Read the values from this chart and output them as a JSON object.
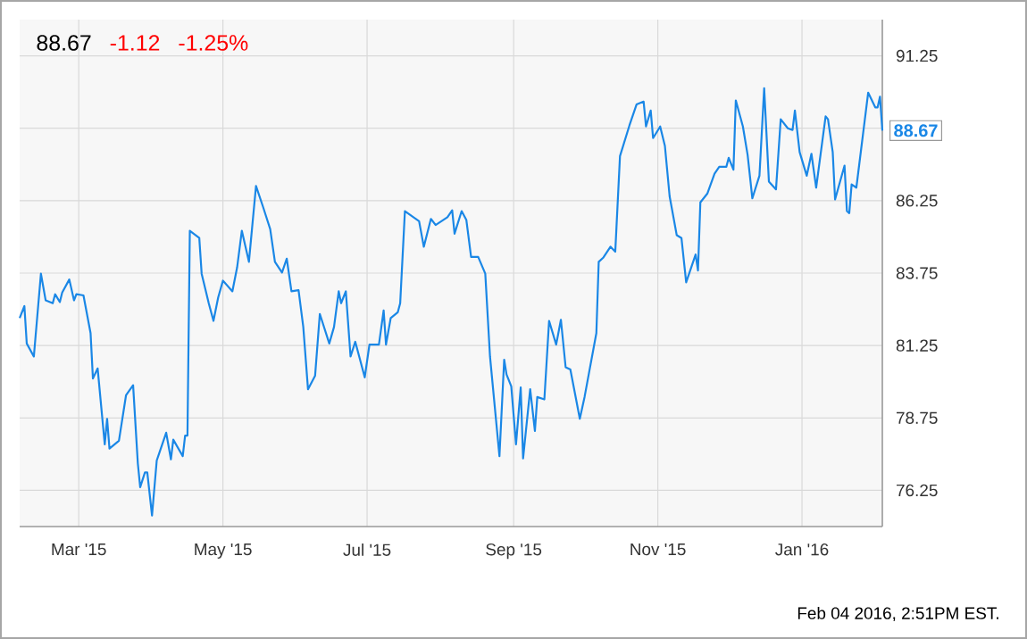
{
  "chart_data": {
    "type": "line",
    "x": [
      "2015-02-04",
      "2015-02-06",
      "2015-02-07",
      "2015-02-10",
      "2015-02-13",
      "2015-02-15",
      "2015-02-18",
      "2015-02-19",
      "2015-02-21",
      "2015-02-22",
      "2015-02-25",
      "2015-02-27",
      "2015-02-28",
      "2015-03-03",
      "2015-03-06",
      "2015-03-07",
      "2015-03-09",
      "2015-03-12",
      "2015-03-13",
      "2015-03-14",
      "2015-03-18",
      "2015-03-21",
      "2015-03-24",
      "2015-03-26",
      "2015-03-27",
      "2015-03-29",
      "2015-03-30",
      "2015-04-01",
      "2015-04-03",
      "2015-04-07",
      "2015-04-09",
      "2015-04-10",
      "2015-04-14",
      "2015-04-15",
      "2015-04-16",
      "2015-04-17",
      "2015-04-21",
      "2015-04-22",
      "2015-04-25",
      "2015-04-27",
      "2015-04-29",
      "2015-05-01",
      "2015-05-05",
      "2015-05-07",
      "2015-05-09",
      "2015-05-12",
      "2015-05-15",
      "2015-05-18",
      "2015-05-21",
      "2015-05-23",
      "2015-05-26",
      "2015-05-28",
      "2015-05-30",
      "2015-06-02",
      "2015-06-04",
      "2015-06-06",
      "2015-06-09",
      "2015-06-11",
      "2015-06-15",
      "2015-06-17",
      "2015-06-19",
      "2015-06-20",
      "2015-06-22",
      "2015-06-24",
      "2015-06-26",
      "2015-06-30",
      "2015-07-02",
      "2015-07-06",
      "2015-07-08",
      "2015-07-09",
      "2015-07-11",
      "2015-07-14",
      "2015-07-15",
      "2015-07-17",
      "2015-07-23",
      "2015-07-25",
      "2015-07-28",
      "2015-07-30",
      "2015-08-04",
      "2015-08-06",
      "2015-08-07",
      "2015-08-10",
      "2015-08-12",
      "2015-08-14",
      "2015-08-17",
      "2015-08-20",
      "2015-08-22",
      "2015-08-26",
      "2015-08-28",
      "2015-08-29",
      "2015-08-31",
      "2015-09-02",
      "2015-09-04",
      "2015-09-05",
      "2015-09-08",
      "2015-09-10",
      "2015-09-11",
      "2015-09-14",
      "2015-09-16",
      "2015-09-19",
      "2015-09-21",
      "2015-09-23",
      "2015-09-25",
      "2015-09-29",
      "2015-10-01",
      "2015-10-06",
      "2015-10-07",
      "2015-10-09",
      "2015-10-12",
      "2015-10-14",
      "2015-10-16",
      "2015-10-20",
      "2015-10-23",
      "2015-10-26",
      "2015-10-27",
      "2015-10-29",
      "2015-10-30",
      "2015-11-02",
      "2015-11-04",
      "2015-11-06",
      "2015-11-09",
      "2015-11-11",
      "2015-11-13",
      "2015-11-17",
      "2015-11-18",
      "2015-11-19",
      "2015-11-22",
      "2015-11-25",
      "2015-11-27",
      "2015-11-30",
      "2015-12-01",
      "2015-12-03",
      "2015-12-04",
      "2015-12-07",
      "2015-12-09",
      "2015-12-11",
      "2015-12-14",
      "2015-12-16",
      "2015-12-18",
      "2015-12-21",
      "2015-12-23",
      "2015-12-26",
      "2015-12-28",
      "2015-12-29",
      "2015-12-31",
      "2016-01-03",
      "2016-01-05",
      "2016-01-07",
      "2016-01-11",
      "2016-01-12",
      "2016-01-14",
      "2016-01-15",
      "2016-01-19",
      "2016-01-20",
      "2016-01-21",
      "2016-01-22",
      "2016-01-24",
      "2016-01-29",
      "2016-02-01",
      "2016-02-02",
      "2016-02-03",
      "2016-02-04"
    ],
    "series": [
      {
        "color": "#1a87e6",
        "values": [
          82.2,
          82.61,
          81.32,
          80.87,
          83.73,
          82.81,
          82.71,
          83.02,
          82.75,
          83.08,
          83.53,
          82.81,
          83.02,
          82.98,
          81.68,
          80.11,
          80.46,
          77.84,
          78.72,
          77.69,
          77.96,
          79.53,
          79.88,
          77.18,
          76.36,
          76.87,
          76.87,
          75.38,
          77.28,
          78.24,
          77.32,
          78.0,
          77.43,
          78.14,
          78.14,
          85.21,
          84.96,
          83.73,
          82.71,
          82.1,
          82.91,
          83.49,
          83.12,
          83.94,
          85.21,
          84.14,
          86.76,
          86.03,
          85.27,
          84.14,
          83.77,
          84.25,
          83.12,
          83.16,
          81.89,
          79.74,
          80.21,
          82.34,
          81.32,
          81.89,
          83.12,
          82.71,
          83.12,
          80.87,
          81.38,
          80.15,
          81.28,
          81.28,
          82.46,
          81.28,
          82.2,
          82.4,
          82.71,
          85.89,
          85.54,
          84.66,
          85.62,
          85.41,
          85.68,
          85.92,
          85.11,
          85.89,
          85.58,
          84.31,
          84.31,
          83.73,
          80.87,
          77.43,
          80.76,
          80.25,
          79.84,
          77.84,
          79.8,
          77.35,
          79.74,
          78.3,
          79.47,
          79.39,
          82.1,
          81.28,
          82.14,
          80.5,
          80.42,
          78.72,
          79.47,
          81.68,
          84.14,
          84.29,
          84.66,
          84.49,
          87.79,
          88.85,
          89.57,
          89.67,
          88.81,
          89.36,
          88.41,
          88.81,
          88.14,
          86.4,
          85.06,
          84.96,
          83.43,
          84.39,
          83.84,
          86.19,
          86.5,
          87.18,
          87.42,
          87.42,
          87.73,
          87.32,
          89.71,
          88.81,
          87.83,
          86.33,
          87.11,
          90.13,
          86.91,
          86.64,
          89.06,
          88.75,
          88.69,
          89.36,
          87.93,
          87.11,
          87.87,
          86.7,
          89.16,
          89.06,
          87.93,
          86.29,
          87.46,
          85.89,
          85.82,
          86.81,
          86.7,
          89.98,
          89.47,
          89.47,
          89.84,
          88.67
        ]
      }
    ],
    "xlim": [
      "2015-02-04",
      "2016-02-04"
    ],
    "xticks": [
      {
        "value": "2015-03-01",
        "label": "Mar '15"
      },
      {
        "value": "2015-05-01",
        "label": "May '15"
      },
      {
        "value": "2015-07-01",
        "label": "Jul '15"
      },
      {
        "value": "2015-09-01",
        "label": "Sep '15"
      },
      {
        "value": "2015-11-01",
        "label": "Nov '15"
      },
      {
        "value": "2016-01-01",
        "label": "Jan '16"
      }
    ],
    "ylim": [
      75.0,
      92.5
    ],
    "yticks": [
      76.25,
      78.75,
      81.25,
      83.75,
      86.25,
      {
        "value": 88.75,
        "label": null
      },
      91.25
    ],
    "grid": true,
    "annotations": [
      "88.67",
      "-1.12",
      "-1.25%",
      "Feb 04 2016, 2:51PM EST.",
      {
        "text": "88.67",
        "x": "2016-02-04",
        "y": 88.67
      }
    ]
  }
}
